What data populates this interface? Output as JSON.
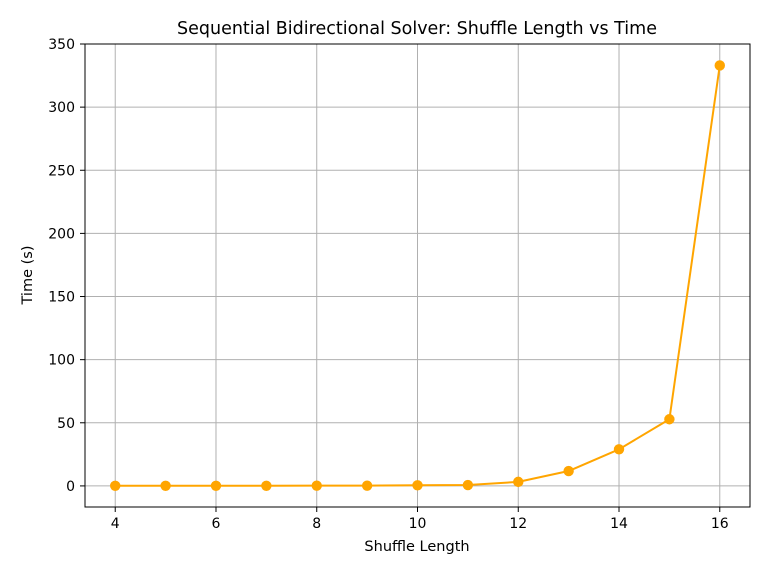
{
  "chart_data": {
    "type": "line",
    "title": "Sequential Bidirectional Solver: Shuffle Length vs Time",
    "xlabel": "Shuffle Length",
    "ylabel": "Time (s)",
    "x": [
      4,
      5,
      6,
      7,
      8,
      9,
      10,
      11,
      12,
      13,
      14,
      15,
      16
    ],
    "series": [
      {
        "values": [
          0.1,
          0.1,
          0.1,
          0.1,
          0.2,
          0.2,
          0.5,
          0.7,
          3.2,
          11.8,
          29.0,
          52.8,
          333.0
        ],
        "color": "#ffa500",
        "marker": "circle"
      }
    ],
    "xlim": [
      3.4,
      16.6
    ],
    "ylim": [
      -16.7,
      350
    ],
    "xticks": [
      4,
      6,
      8,
      10,
      12,
      14,
      16
    ],
    "yticks": [
      0,
      50,
      100,
      150,
      200,
      250,
      300,
      350
    ],
    "grid": true,
    "grid_color": "#b0b0b0"
  }
}
